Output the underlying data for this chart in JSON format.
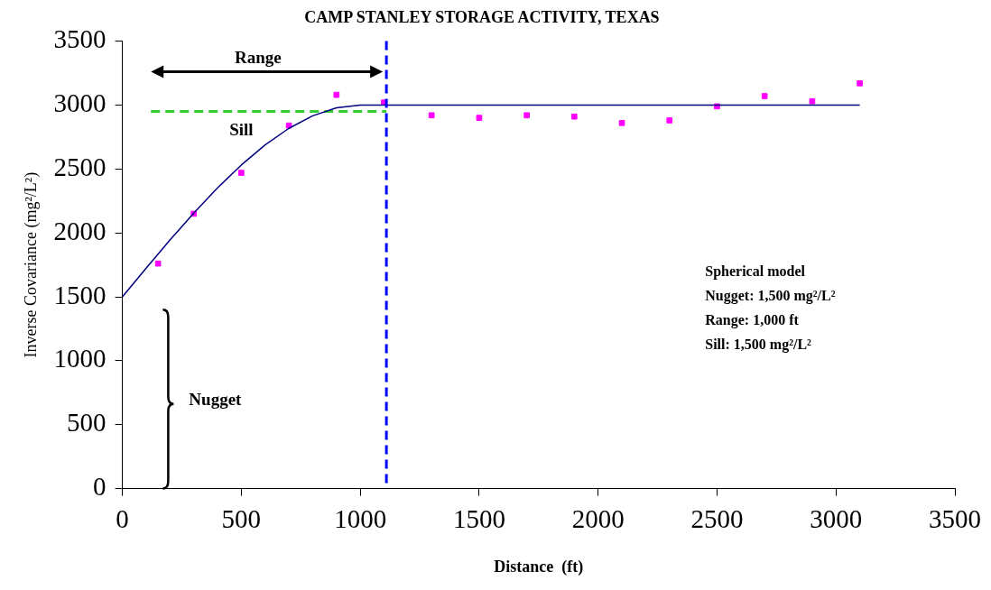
{
  "chart_data": {
    "type": "scatter",
    "title": "CAMP STANLEY STORAGE ACTIVITY, TEXAS",
    "xlabel": "Distance  (ft)",
    "ylabel": "Inverse Covariance (mg²/L²)",
    "xlim": [
      0,
      3500
    ],
    "xticks": [
      0,
      500,
      1000,
      1500,
      2000,
      2500,
      3000,
      3500
    ],
    "ylim": [
      0,
      3500
    ],
    "yticks": [
      0,
      500,
      1000,
      1500,
      2000,
      2500,
      3000,
      3500
    ],
    "grid": false,
    "legend": false,
    "series": [
      {
        "type": "line",
        "color": "#000080",
        "marker": "none",
        "line_style": "solid",
        "x": [
          0,
          100,
          200,
          300,
          400,
          500,
          600,
          700,
          800,
          900,
          1000,
          3100
        ],
        "values": [
          1500,
          1724,
          1944,
          2155,
          2352,
          2531,
          2688,
          2818,
          2916,
          2978,
          3000,
          3000
        ]
      },
      {
        "color": "#ff00ff",
        "marker": "square",
        "x": [
          150,
          300,
          500,
          700,
          900,
          1100,
          1300,
          1500,
          1700,
          1900,
          2100,
          2300,
          2500,
          2700,
          2900,
          3100
        ],
        "values": [
          1760,
          2150,
          2470,
          2840,
          3080,
          3020,
          2920,
          2900,
          2920,
          2910,
          2860,
          2880,
          2990,
          3070,
          3030,
          3170
        ]
      },
      {
        "type": "line",
        "color": "#33cc33",
        "marker": "none",
        "line_style": "dashed",
        "x": [
          120,
          1110
        ],
        "values": [
          2950,
          2950
        ]
      }
    ],
    "ref_lines": [
      {
        "axis": "x",
        "value": 1110,
        "color": "#0000ff",
        "line_style": "dashed"
      }
    ],
    "annotations": [
      "Range",
      "Sill",
      "Nugget",
      "Spherical model",
      "Nugget:  1,500 mg²/L²",
      "Range:  1,000 ft",
      "Sill:  1,500 mg²/L²"
    ]
  }
}
